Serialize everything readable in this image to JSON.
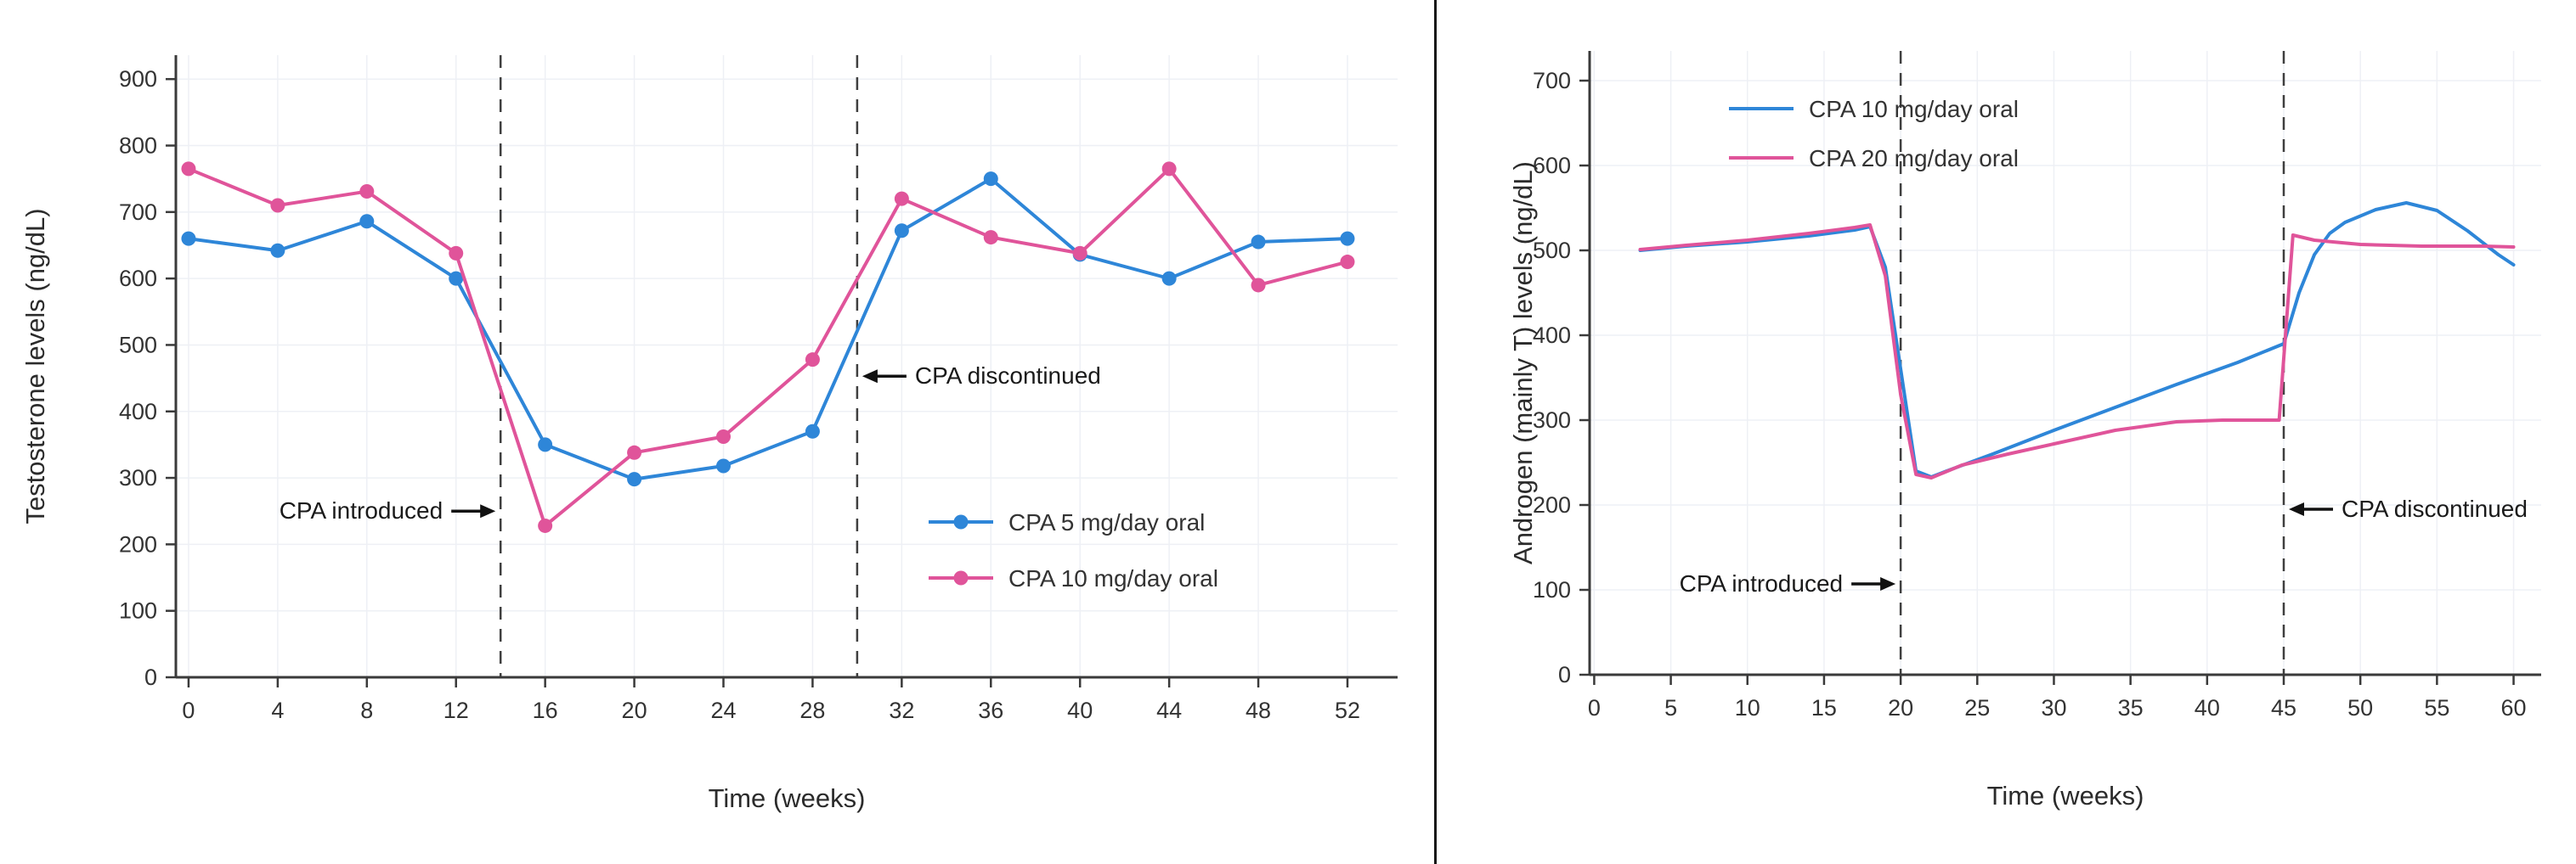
{
  "page": {
    "background": "#ffffff",
    "divider_color": "#161616"
  },
  "chart_data": [
    {
      "type": "line",
      "title": "",
      "xlabel": "Time (weeks)",
      "ylabel": "Testosterone levels (ng/dL)",
      "xlim": [
        -0.57,
        54.25
      ],
      "ylim": [
        0,
        936
      ],
      "xticks": [
        0,
        4,
        8,
        12,
        16,
        20,
        24,
        28,
        32,
        36,
        40,
        44,
        48,
        52
      ],
      "yticks": [
        0,
        100,
        200,
        300,
        400,
        500,
        600,
        700,
        800,
        900
      ],
      "grid": true,
      "grid_color": "#eef0f5",
      "legend_position": "inside-lower-right",
      "series": [
        {
          "name": "CPA 5 mg/day oral",
          "color": "#2e86d8",
          "markers": true,
          "x": [
            0,
            4,
            8,
            12,
            16,
            20,
            24,
            28,
            32,
            36,
            40,
            44,
            48,
            52
          ],
          "y": [
            660,
            642,
            686,
            600,
            350,
            298,
            318,
            370,
            672,
            750,
            636,
            600,
            655,
            660
          ]
        },
        {
          "name": "CPA 10 mg/day oral",
          "color": "#e0549a",
          "markers": true,
          "x": [
            0,
            4,
            8,
            12,
            16,
            20,
            24,
            28,
            32,
            36,
            40,
            44,
            48,
            52
          ],
          "y": [
            765,
            710,
            731,
            638,
            228,
            338,
            362,
            478,
            720,
            662,
            638,
            765,
            590,
            625
          ]
        }
      ],
      "vlines": [
        {
          "x": 14
        },
        {
          "x": 30
        }
      ],
      "annotations": [
        {
          "text": "CPA introduced",
          "target_x": 14,
          "y": 250,
          "side": "left"
        },
        {
          "text": "CPA discontinued",
          "target_x": 30,
          "y": 453,
          "side": "right"
        }
      ]
    },
    {
      "type": "line",
      "title": "",
      "xlabel": "Time (weeks)",
      "ylabel": "Androgen (mainly T) levels (ng/dL)",
      "xlim": [
        -0.3,
        61.8
      ],
      "ylim": [
        0,
        735
      ],
      "xticks": [
        0,
        5,
        10,
        15,
        20,
        25,
        30,
        35,
        40,
        45,
        50,
        55,
        60
      ],
      "yticks": [
        0,
        100,
        200,
        300,
        400,
        500,
        600,
        700
      ],
      "grid": true,
      "grid_color": "#eef0f5",
      "legend_position": "inside-upper-center",
      "series": [
        {
          "name": "CPA 10 mg/day oral",
          "color": "#2e86d8",
          "markers": false,
          "x": [
            3,
            6,
            10,
            14,
            17,
            18,
            19,
            20,
            21,
            22,
            23,
            26,
            30,
            34,
            38,
            42,
            45,
            46,
            47,
            48,
            49,
            51,
            53,
            55,
            57,
            59,
            60
          ],
          "y": [
            500,
            505,
            510,
            517,
            524,
            528,
            480,
            360,
            240,
            233,
            240,
            260,
            288,
            315,
            342,
            368,
            390,
            450,
            495,
            520,
            533,
            548,
            556,
            547,
            523,
            495,
            483
          ]
        },
        {
          "name": "CPA 20 mg/day oral",
          "color": "#e0549a",
          "markers": false,
          "x": [
            3,
            6,
            10,
            14,
            17,
            18,
            19,
            20,
            21,
            22,
            24,
            27,
            30,
            34,
            38,
            41,
            44,
            44.7,
            45.6,
            47,
            50,
            54,
            58,
            60
          ],
          "y": [
            501,
            506,
            512,
            520,
            527,
            530,
            470,
            330,
            236,
            232,
            247,
            260,
            272,
            288,
            298,
            300,
            300,
            300,
            518,
            512,
            507,
            505,
            505,
            504
          ]
        }
      ],
      "vlines": [
        {
          "x": 20
        },
        {
          "x": 45
        }
      ],
      "annotations": [
        {
          "text": "CPA introduced",
          "target_x": 20,
          "y": 107,
          "side": "left"
        },
        {
          "text": "CPA discontinued",
          "target_x": 45,
          "y": 195,
          "side": "right"
        }
      ]
    }
  ]
}
